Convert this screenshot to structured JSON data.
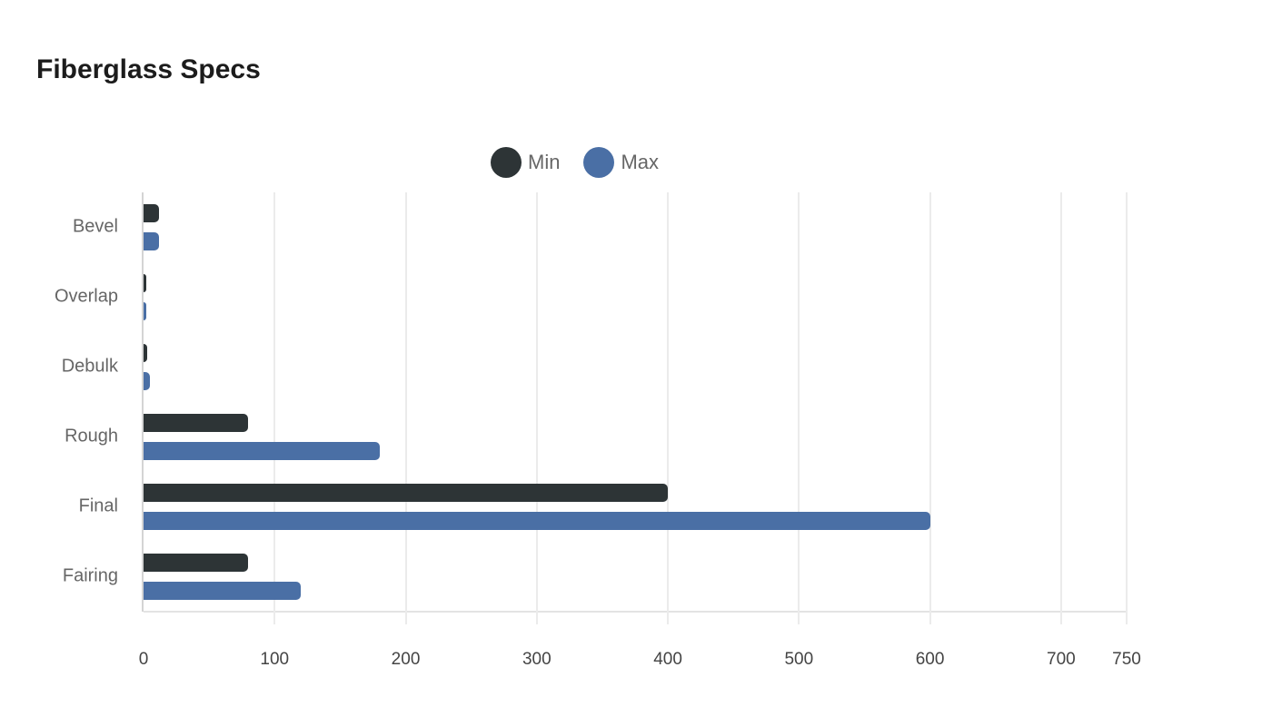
{
  "title": "Fiberglass Specs",
  "legend": [
    {
      "label": "Min",
      "color": "#2d3436"
    },
    {
      "label": "Max",
      "color": "#4a6fa5"
    }
  ],
  "axis": {
    "ticks": [
      "0",
      "100",
      "200",
      "300",
      "400",
      "500",
      "600",
      "700",
      "750"
    ],
    "tick_values": [
      0,
      100,
      200,
      300,
      400,
      500,
      600,
      700,
      750
    ],
    "max": 750
  },
  "chart_data": {
    "type": "bar",
    "orientation": "horizontal",
    "title": "Fiberglass Specs",
    "categories": [
      "Bevel",
      "Overlap",
      "Debulk",
      "Rough",
      "Final",
      "Fairing"
    ],
    "series": [
      {
        "name": "Min",
        "color": "#2d3436",
        "values": [
          12,
          2,
          3,
          80,
          400,
          80
        ]
      },
      {
        "name": "Max",
        "color": "#4a6fa5",
        "values": [
          12,
          2,
          5,
          180,
          600,
          120
        ]
      }
    ],
    "xlabel": "",
    "ylabel": "",
    "xlim": [
      0,
      750
    ],
    "xticks": [
      0,
      100,
      200,
      300,
      400,
      500,
      600,
      700,
      750
    ],
    "grid": true,
    "legend_position": "top"
  }
}
